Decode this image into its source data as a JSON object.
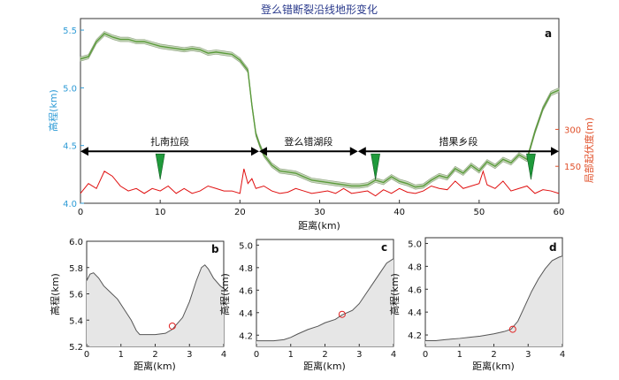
{
  "chart_data": [
    {
      "id": "a",
      "type": "line",
      "panel_label": "a",
      "title": "登么错断裂沿线地形变化",
      "xlabel": "距离(km)",
      "ylabel": "高程(km)",
      "y2label": "局部起伏度(m)",
      "xlim": [
        0,
        60
      ],
      "ylim": [
        4.0,
        5.6
      ],
      "y2lim": [
        0,
        750
      ],
      "xticks": [
        0,
        10,
        20,
        30,
        40,
        50,
        60
      ],
      "yticks": [
        4.0,
        4.5,
        5.0,
        5.5
      ],
      "y2ticks": [
        150,
        300
      ],
      "grid": false,
      "colors": {
        "elevation": "#5a9a3a",
        "band": "#c8d8bd",
        "relief": "#e01010",
        "left_axis": "#2e9bd6",
        "right_axis": "#e0502a",
        "marker": "#1f9a3b"
      },
      "series": [
        {
          "axis": "left",
          "x": [
            0,
            1,
            2,
            3,
            4,
            5,
            6,
            7,
            8,
            9,
            10,
            11,
            12,
            13,
            14,
            15,
            16,
            17,
            18,
            19,
            20,
            21,
            21.5,
            22,
            22.5,
            23,
            24,
            25,
            26,
            27,
            28,
            29,
            30,
            31,
            32,
            33,
            34,
            35,
            36,
            37,
            38,
            39,
            40,
            41,
            42,
            43,
            44,
            45,
            46,
            47,
            48,
            49,
            50,
            51,
            52,
            53,
            54,
            55,
            56,
            57,
            58,
            59,
            60
          ],
          "values": [
            5.25,
            5.27,
            5.4,
            5.47,
            5.44,
            5.42,
            5.42,
            5.4,
            5.4,
            5.38,
            5.36,
            5.35,
            5.34,
            5.33,
            5.34,
            5.33,
            5.3,
            5.31,
            5.3,
            5.29,
            5.24,
            5.15,
            4.85,
            4.6,
            4.5,
            4.42,
            4.33,
            4.28,
            4.27,
            4.26,
            4.23,
            4.2,
            4.19,
            4.18,
            4.17,
            4.16,
            4.15,
            4.15,
            4.16,
            4.2,
            4.18,
            4.23,
            4.19,
            4.17,
            4.14,
            4.15,
            4.2,
            4.24,
            4.22,
            4.3,
            4.26,
            4.33,
            4.28,
            4.36,
            4.32,
            4.38,
            4.35,
            4.42,
            4.38,
            4.62,
            4.82,
            4.95,
            4.98
          ]
        },
        {
          "axis": "right",
          "x": [
            0,
            1,
            2,
            3,
            4,
            5,
            6,
            7,
            8,
            9,
            10,
            11,
            12,
            13,
            14,
            15,
            16,
            17,
            18,
            19,
            20,
            20.5,
            21,
            21.5,
            22,
            23,
            24,
            25,
            26,
            27,
            28,
            29,
            30,
            31,
            32,
            33,
            34,
            35,
            36,
            37,
            38,
            39,
            40,
            41,
            42,
            43,
            44,
            45,
            46,
            47,
            48,
            49,
            50,
            50.5,
            51,
            52,
            53,
            54,
            55,
            56,
            57,
            58,
            59,
            60
          ],
          "values": [
            40,
            80,
            60,
            130,
            110,
            70,
            50,
            60,
            40,
            60,
            50,
            70,
            40,
            60,
            40,
            50,
            70,
            60,
            50,
            50,
            40,
            140,
            80,
            100,
            60,
            70,
            50,
            40,
            45,
            60,
            50,
            40,
            45,
            50,
            40,
            60,
            40,
            45,
            50,
            30,
            55,
            40,
            60,
            45,
            40,
            50,
            70,
            60,
            55,
            90,
            60,
            70,
            80,
            130,
            75,
            60,
            90,
            50,
            60,
            70,
            40,
            55,
            50,
            40
          ]
        }
      ],
      "segments": [
        {
          "label": "扎南拉段",
          "x_start": 0,
          "x_end": 22.4
        },
        {
          "label": "登么错湖段",
          "x_start": 22.4,
          "x_end": 34.8
        },
        {
          "label": "措果乡段",
          "x_start": 34.8,
          "x_end": 60
        }
      ],
      "segment_y": 4.45,
      "markers_x": [
        10,
        37,
        56.5
      ]
    },
    {
      "id": "b",
      "type": "area",
      "panel_label": "b",
      "xlabel": "距离(km)",
      "ylabel": "高程(km)",
      "xlim": [
        0,
        4
      ],
      "ylim": [
        5.2,
        6.0
      ],
      "xticks": [
        0,
        1,
        2,
        3,
        4
      ],
      "yticks": [
        5.2,
        5.4,
        5.6,
        5.8,
        6.0
      ],
      "x": [
        0,
        0.1,
        0.2,
        0.35,
        0.5,
        0.7,
        0.9,
        1.1,
        1.3,
        1.45,
        1.55,
        1.7,
        2.0,
        2.3,
        2.5,
        2.6,
        2.8,
        3.0,
        3.2,
        3.35,
        3.45,
        3.55,
        3.7,
        3.9,
        4.0
      ],
      "values": [
        5.7,
        5.75,
        5.76,
        5.72,
        5.66,
        5.61,
        5.56,
        5.48,
        5.4,
        5.32,
        5.29,
        5.29,
        5.29,
        5.3,
        5.33,
        5.36,
        5.42,
        5.54,
        5.7,
        5.8,
        5.82,
        5.79,
        5.72,
        5.66,
        5.64
      ],
      "circle": {
        "x": 2.5,
        "y": 5.355
      }
    },
    {
      "id": "c",
      "type": "area",
      "panel_label": "c",
      "xlabel": "距离(km)",
      "ylabel": "高程(km)",
      "xlim": [
        0,
        4
      ],
      "ylim": [
        4.1,
        5.05
      ],
      "xticks": [
        0,
        1,
        2,
        3,
        4
      ],
      "yticks": [
        4.2,
        4.4,
        4.6,
        4.8,
        5.0
      ],
      "x": [
        0,
        0.2,
        0.5,
        0.8,
        1.0,
        1.2,
        1.5,
        1.8,
        2.0,
        2.3,
        2.5,
        2.8,
        3.0,
        3.2,
        3.4,
        3.6,
        3.8,
        4.0
      ],
      "values": [
        4.15,
        4.15,
        4.15,
        4.16,
        4.18,
        4.21,
        4.25,
        4.28,
        4.31,
        4.34,
        4.38,
        4.42,
        4.48,
        4.57,
        4.66,
        4.75,
        4.84,
        4.88
      ],
      "circle": {
        "x": 2.5,
        "y": 4.385
      }
    },
    {
      "id": "d",
      "type": "area",
      "panel_label": "d",
      "xlabel": "距离(km)",
      "ylabel": "高程(km)",
      "xlim": [
        0,
        4
      ],
      "ylim": [
        4.1,
        5.05
      ],
      "xticks": [
        0,
        1,
        2,
        3,
        4
      ],
      "yticks": [
        4.2,
        4.4,
        4.6,
        4.8,
        5.0
      ],
      "x": [
        0,
        0.3,
        0.6,
        1.0,
        1.3,
        1.6,
        2.0,
        2.3,
        2.5,
        2.7,
        2.9,
        3.1,
        3.3,
        3.5,
        3.7,
        3.9,
        4.0
      ],
      "values": [
        4.15,
        4.15,
        4.16,
        4.17,
        4.18,
        4.19,
        4.21,
        4.23,
        4.25,
        4.32,
        4.45,
        4.58,
        4.69,
        4.78,
        4.85,
        4.88,
        4.89
      ],
      "circle": {
        "x": 2.55,
        "y": 4.25
      }
    }
  ]
}
